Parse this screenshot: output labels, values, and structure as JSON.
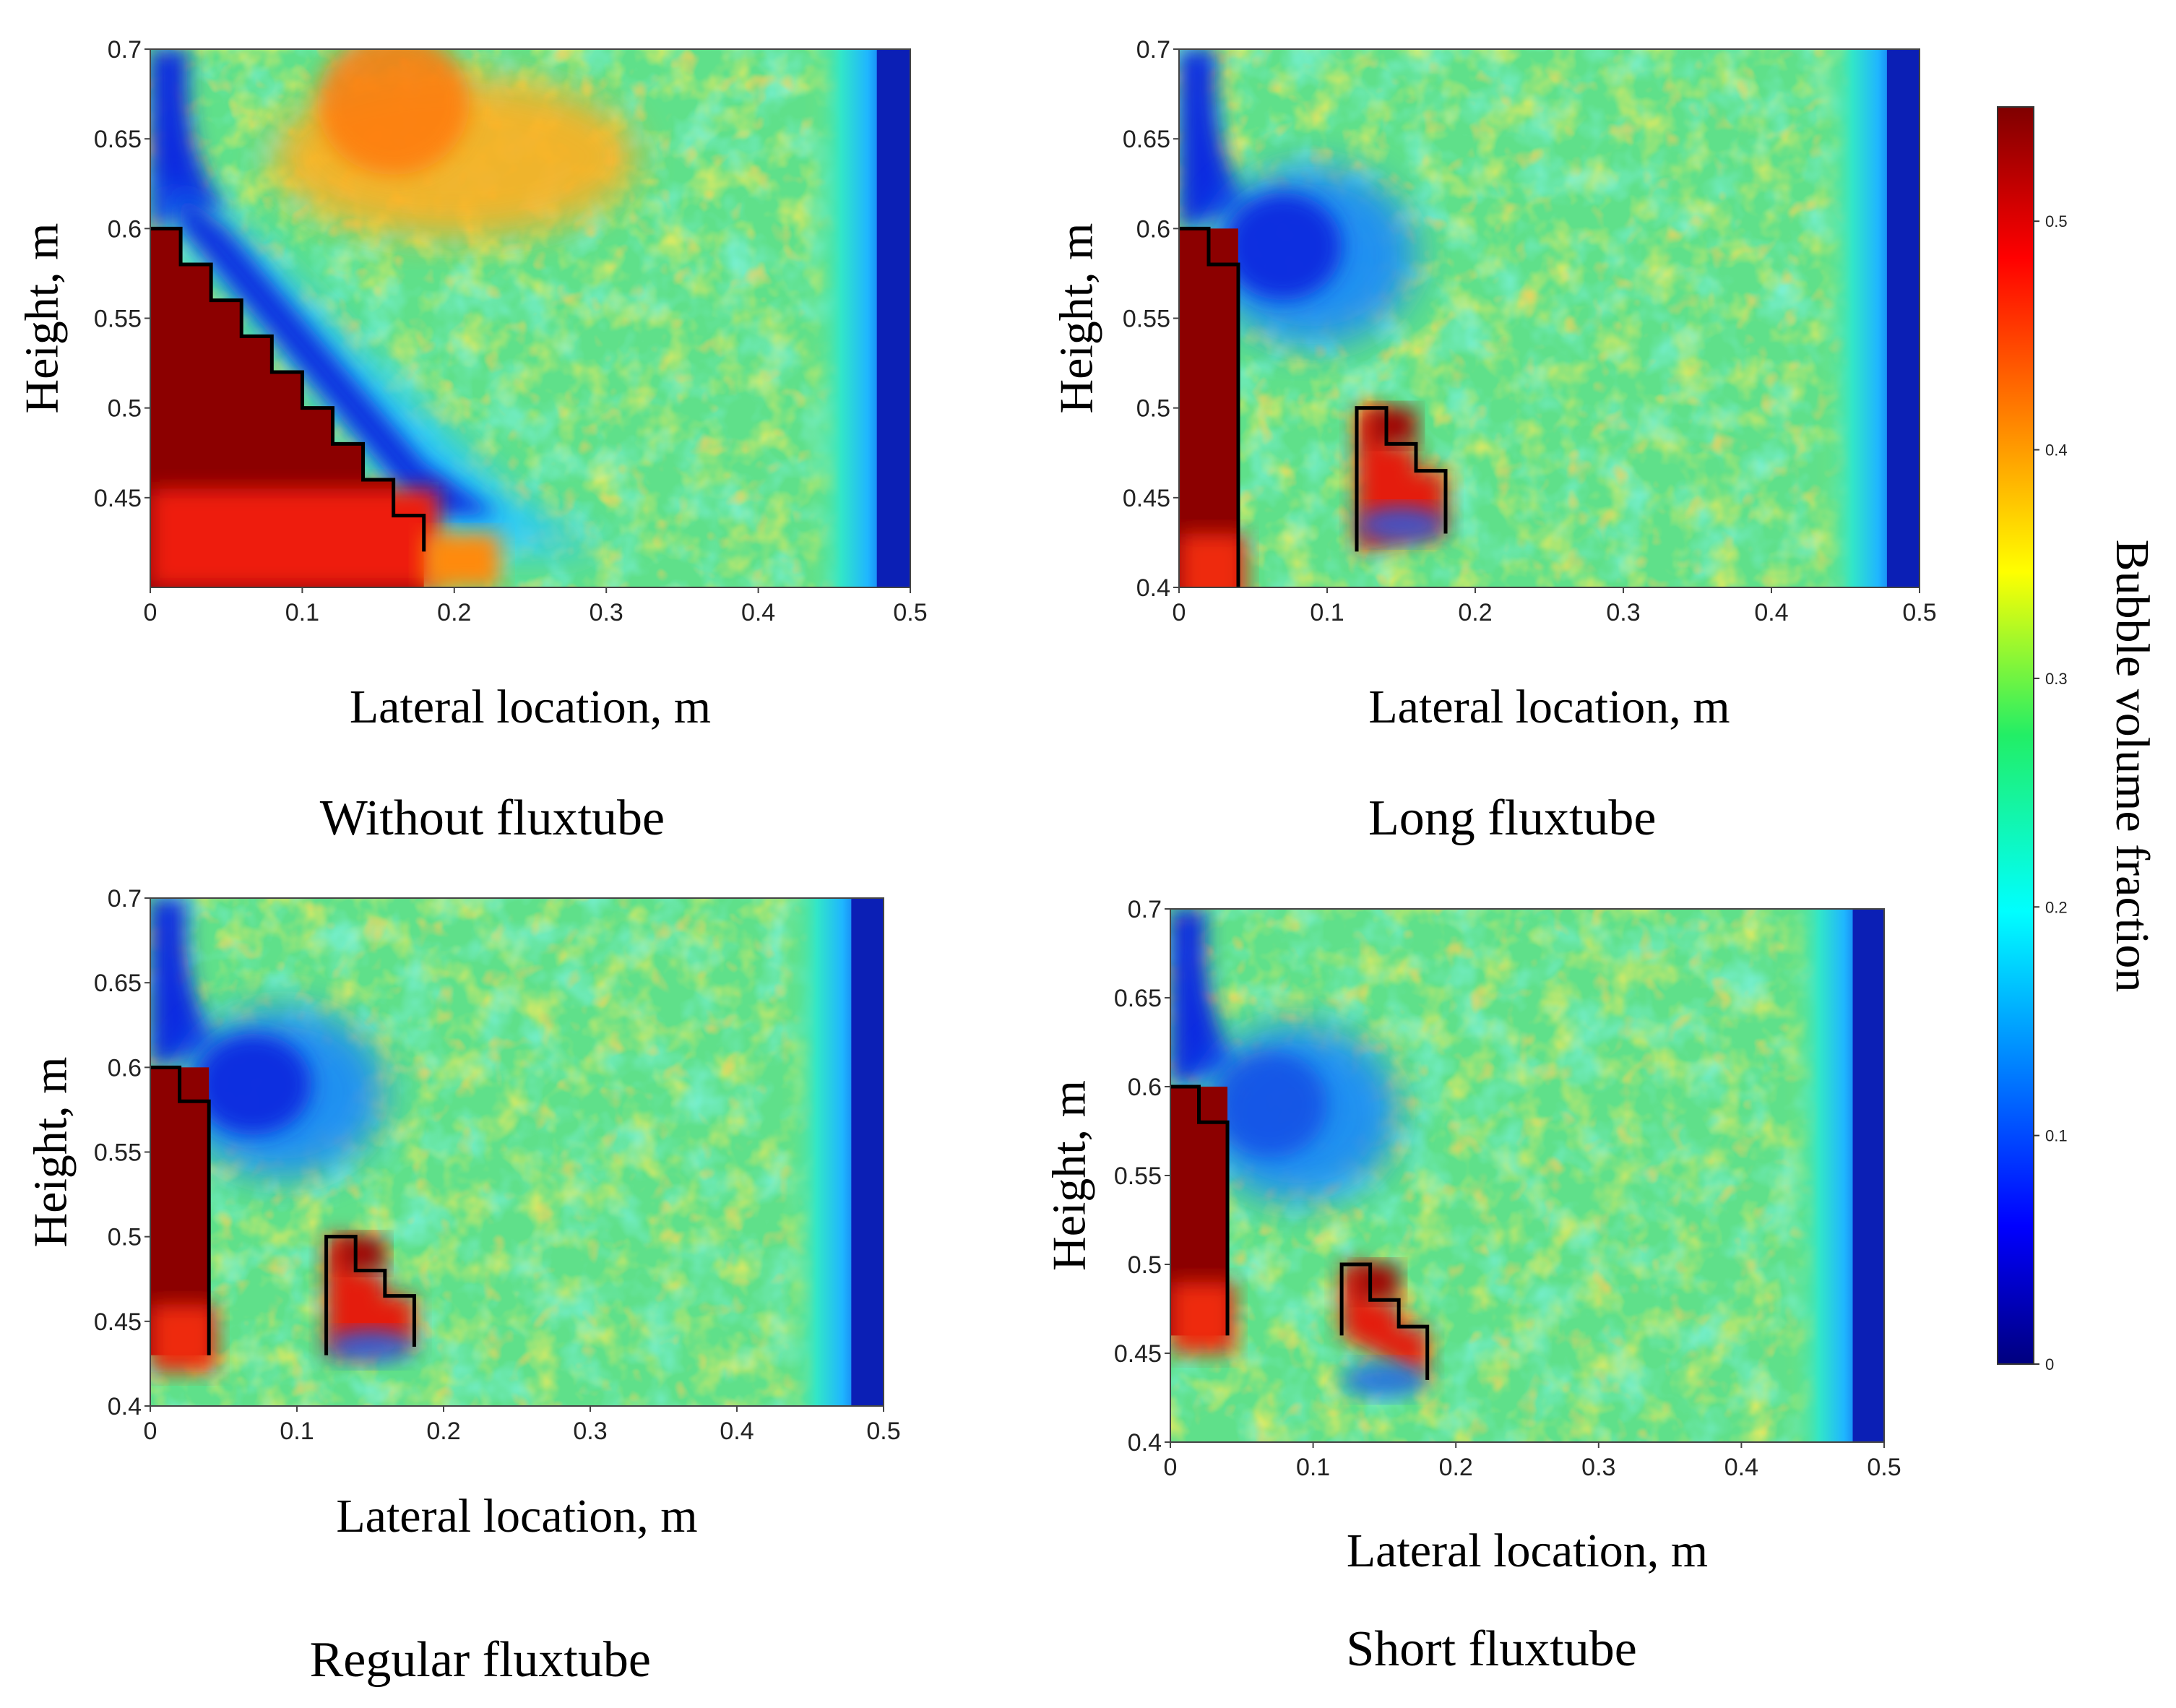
{
  "chart_data": [
    {
      "type": "heatmap",
      "caption": "Without fluxtube",
      "xlabel": "Lateral location, m",
      "ylabel": "Height, m",
      "xlim": [
        0,
        0.5
      ],
      "ylim": [
        0.4,
        0.7
      ],
      "xticks": [
        "0",
        "0.1",
        "0.2",
        "0.3",
        "0.4",
        "0.5"
      ],
      "yticks": [
        "0.45",
        "0.5",
        "0.55",
        "0.6",
        "0.65",
        "0.7"
      ],
      "fluxtube_outline": [
        [
          0,
          0.6
        ],
        [
          0.02,
          0.6
        ],
        [
          0.02,
          0.58
        ],
        [
          0.04,
          0.58
        ],
        [
          0.04,
          0.56
        ],
        [
          0.06,
          0.56
        ],
        [
          0.06,
          0.54
        ],
        [
          0.08,
          0.54
        ],
        [
          0.08,
          0.52
        ],
        [
          0.1,
          0.52
        ],
        [
          0.1,
          0.5
        ],
        [
          0.12,
          0.5
        ],
        [
          0.12,
          0.48
        ],
        [
          0.14,
          0.48
        ],
        [
          0.14,
          0.46
        ],
        [
          0.16,
          0.46
        ],
        [
          0.16,
          0.44
        ],
        [
          0.18,
          0.44
        ],
        [
          0.18,
          0.42
        ]
      ],
      "pattern": "stepped diagonal region near-inlet high fraction (~0.55); low fraction band along diagonal and right wall; ~0.3 elsewhere; ~0.4 upper middle"
    },
    {
      "type": "heatmap",
      "caption": "Long fluxtube",
      "xlabel": "Lateral location, m",
      "ylabel": "Height, m",
      "xlim": [
        0,
        0.5
      ],
      "ylim": [
        0.4,
        0.7
      ],
      "xticks": [
        "0",
        "0.1",
        "0.2",
        "0.3",
        "0.4",
        "0.5"
      ],
      "yticks": [
        "0.4",
        "0.45",
        "0.5",
        "0.55",
        "0.6",
        "0.65",
        "0.7"
      ],
      "fluxtube_outline": [
        [
          0.04,
          0.4
        ],
        [
          0.04,
          0.58
        ],
        [
          0.02,
          0.58
        ],
        [
          0.02,
          0.6
        ],
        [
          0,
          0.6
        ]
      ],
      "inner_outline": [
        [
          0.12,
          0.42
        ],
        [
          0.12,
          0.5
        ],
        [
          0.14,
          0.5
        ],
        [
          0.14,
          0.48
        ],
        [
          0.16,
          0.48
        ],
        [
          0.16,
          0.465
        ],
        [
          0.18,
          0.465
        ],
        [
          0.18,
          0.43
        ]
      ],
      "pattern": "left tube region high (~0.55); low fraction zone just right of tube top; ~0.3 elsewhere; low at right wall"
    },
    {
      "type": "heatmap",
      "caption": "Regular fluxtube",
      "xlabel": "Lateral location, m",
      "ylabel": "Height, m",
      "xlim": [
        0,
        0.5
      ],
      "ylim": [
        0.4,
        0.7
      ],
      "xticks": [
        "0",
        "0.1",
        "0.2",
        "0.3",
        "0.4",
        "0.5"
      ],
      "yticks": [
        "0.4",
        "0.45",
        "0.5",
        "0.55",
        "0.6",
        "0.65",
        "0.7"
      ],
      "fluxtube_outline": [
        [
          0.04,
          0.43
        ],
        [
          0.04,
          0.58
        ],
        [
          0.02,
          0.58
        ],
        [
          0.02,
          0.6
        ],
        [
          0,
          0.6
        ]
      ],
      "inner_outline": [
        [
          0.12,
          0.43
        ],
        [
          0.12,
          0.5
        ],
        [
          0.14,
          0.5
        ],
        [
          0.14,
          0.48
        ],
        [
          0.16,
          0.48
        ],
        [
          0.16,
          0.465
        ],
        [
          0.18,
          0.465
        ],
        [
          0.18,
          0.435
        ]
      ],
      "pattern": "left tube region high (~0.55); low zone to right of tube top; ~0.3 elsewhere; low at right wall"
    },
    {
      "type": "heatmap",
      "caption": "Short fluxtube",
      "xlabel": "Lateral location, m",
      "ylabel": "Height, m",
      "xlim": [
        0,
        0.5
      ],
      "ylim": [
        0.4,
        0.7
      ],
      "xticks": [
        "0",
        "0.1",
        "0.2",
        "0.3",
        "0.4",
        "0.5"
      ],
      "yticks": [
        "0.4",
        "0.45",
        "0.5",
        "0.55",
        "0.6",
        "0.65",
        "0.7"
      ],
      "fluxtube_outline": [
        [
          0.04,
          0.46
        ],
        [
          0.04,
          0.58
        ],
        [
          0.02,
          0.58
        ],
        [
          0.02,
          0.6
        ],
        [
          0,
          0.6
        ]
      ],
      "inner_outline": [
        [
          0.12,
          0.46
        ],
        [
          0.12,
          0.5
        ],
        [
          0.14,
          0.5
        ],
        [
          0.14,
          0.48
        ],
        [
          0.16,
          0.48
        ],
        [
          0.16,
          0.465
        ],
        [
          0.18,
          0.465
        ],
        [
          0.18,
          0.435
        ]
      ],
      "pattern": "left tube region high (~0.55); ~0.3-0.35 elsewhere; low at right wall"
    }
  ],
  "colorbar": {
    "label": "Bubble volume fraction",
    "range": [
      0,
      0.55
    ],
    "ticks": [
      "0",
      "0.1",
      "0.2",
      "0.3",
      "0.4",
      "0.5"
    ],
    "colormap": "jet"
  }
}
